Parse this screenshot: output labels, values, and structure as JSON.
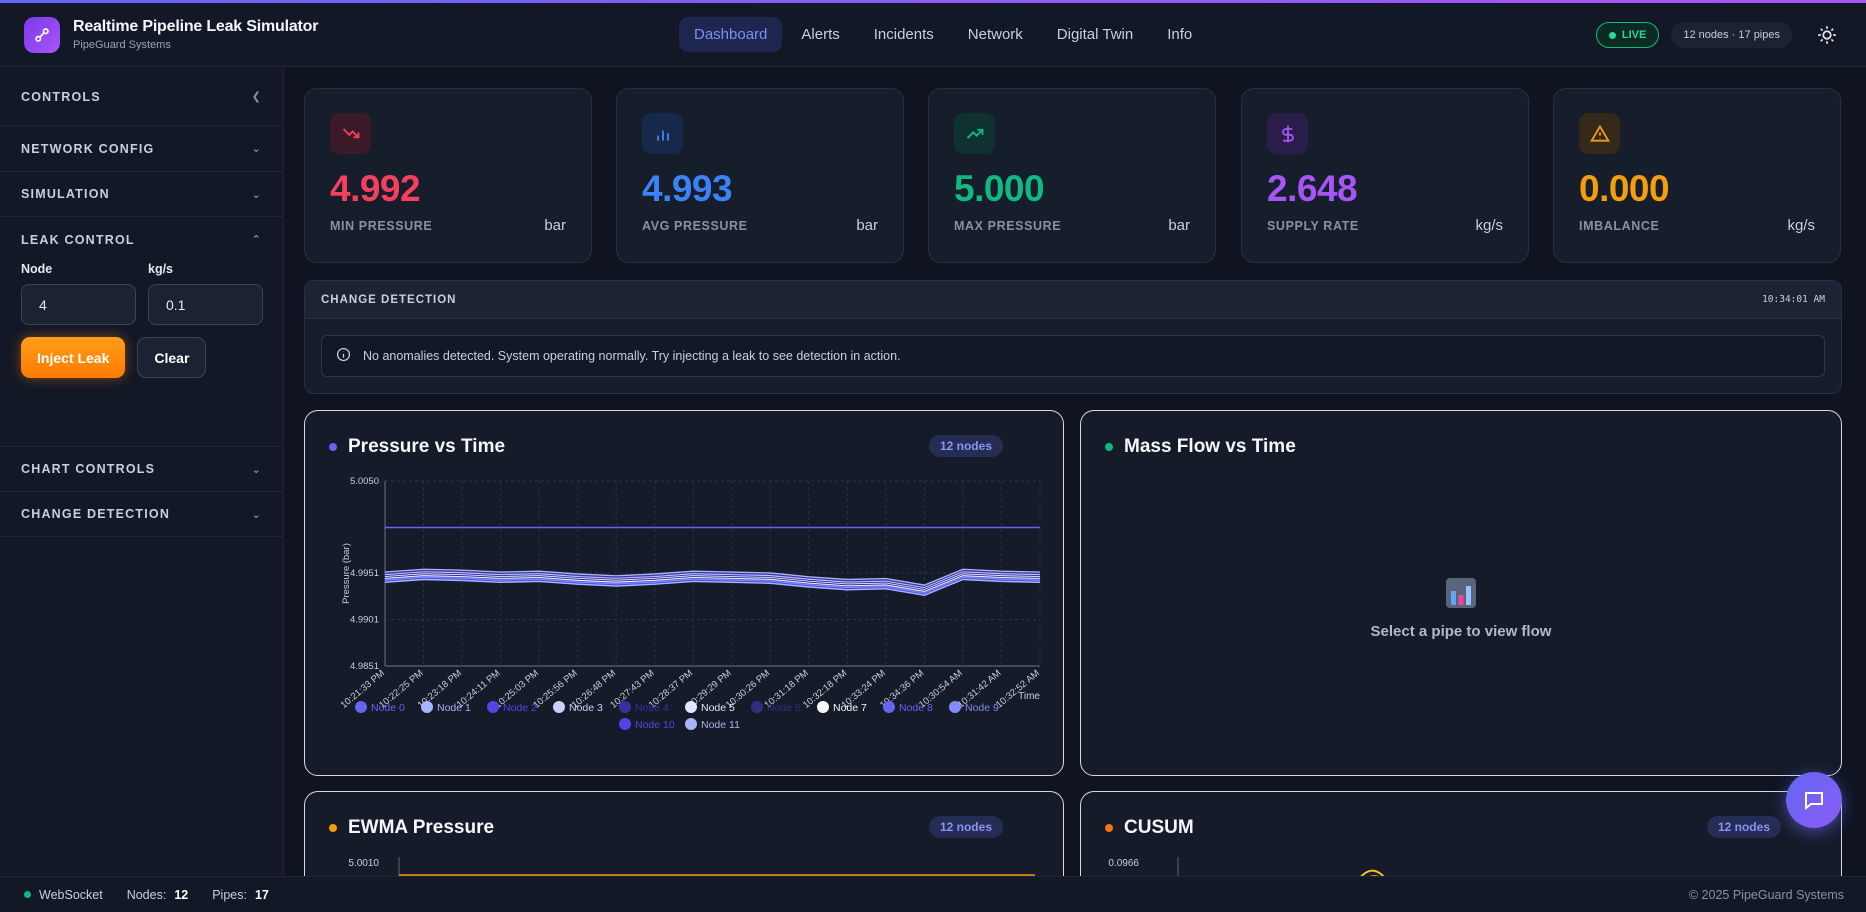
{
  "header": {
    "title": "Realtime Pipeline Leak Simulator",
    "subtitle": "PipeGuard Systems",
    "nav": [
      "Dashboard",
      "Alerts",
      "Incidents",
      "Network",
      "Digital Twin",
      "Info"
    ],
    "live_label": "LIVE",
    "network_pill": "12 nodes · 17 pipes"
  },
  "sidebar": {
    "controls_label": "CONTROLS",
    "network_config": "NETWORK CONFIG",
    "simulation": "SIMULATION",
    "leak_control": "LEAK CONTROL",
    "node_label": "Node",
    "node_value": "4",
    "rate_label": "kg/s",
    "rate_value": "0.1",
    "inject_label": "Inject Leak",
    "clear_label": "Clear",
    "chart_controls": "CHART CONTROLS",
    "change_detection": "CHANGE DETECTION"
  },
  "stats": [
    {
      "value": "4.992",
      "label": "MIN PRESSURE",
      "unit": "bar",
      "color": "#f43f5e",
      "icon": "trending-down-icon"
    },
    {
      "value": "4.993",
      "label": "AVG PRESSURE",
      "unit": "bar",
      "color": "#3b82f6",
      "icon": "bar-chart-icon"
    },
    {
      "value": "5.000",
      "label": "MAX PRESSURE",
      "unit": "bar",
      "color": "#10b981",
      "icon": "trending-up-icon"
    },
    {
      "value": "2.648",
      "label": "SUPPLY RATE",
      "unit": "kg/s",
      "color": "#a855f7",
      "icon": "dollar-icon"
    },
    {
      "value": "0.000",
      "label": "IMBALANCE",
      "unit": "kg/s",
      "color": "#f59e0b",
      "icon": "warning-icon"
    }
  ],
  "change_detection": {
    "title": "CHANGE DETECTION",
    "time": "10:34:01 AM",
    "message": "No anomalies detected. System operating normally. Try injecting a leak to see detection in action."
  },
  "panels": {
    "pressure": {
      "title": "Pressure vs Time",
      "badge": "12 nodes"
    },
    "massflow": {
      "title": "Mass Flow vs Time",
      "empty": "Select a pipe to view flow"
    },
    "ewma": {
      "title": "EWMA Pressure",
      "badge": "12 nodes",
      "top_tick": "5.0010"
    },
    "cusum": {
      "title": "CUSUM",
      "badge": "12 nodes",
      "top_tick": "0.0966"
    }
  },
  "chart_data": {
    "type": "line",
    "title": "Pressure vs Time",
    "ylabel": "Pressure (bar)",
    "xlabel": "Time",
    "ylim": [
      4.9851,
      5.005
    ],
    "y_ticks": [
      "5.0050",
      "4.9951",
      "4.9901",
      "4.9851"
    ],
    "x_ticks": [
      "10:21:33 PM",
      "10:22:25 PM",
      "10:23:18 PM",
      "10:24:11 PM",
      "10:25:03 PM",
      "10:25:56 PM",
      "10:26:48 PM",
      "10:27:43 PM",
      "10:28:37 PM",
      "10:29:29 PM",
      "10:30:26 PM",
      "10:31:18 PM",
      "10:32:18 PM",
      "10:33:24 PM",
      "10:34:36 PM",
      "10:30:54 AM",
      "10:31:42 AM",
      "10:32:52 AM"
    ],
    "series": [
      {
        "name": "Node 0",
        "color": "#6366f1",
        "values": [
          5.0,
          5.0,
          5.0,
          5.0,
          5.0,
          5.0,
          5.0,
          5.0,
          5.0,
          5.0,
          5.0,
          5.0,
          5.0,
          5.0,
          5.0,
          5.0,
          5.0,
          5.0
        ]
      },
      {
        "name": "Node 1",
        "color": "#a5b4fc",
        "values": [
          4.9952,
          4.9955,
          4.9954,
          4.9952,
          4.9953,
          4.995,
          4.9948,
          4.995,
          4.9953,
          4.9952,
          4.9951,
          4.9947,
          4.9944,
          4.9945,
          4.9938,
          4.9955,
          4.9953,
          4.9952
        ]
      },
      {
        "name": "Node 2",
        "color": "#4f46e5",
        "values": [
          4.995,
          4.9953,
          4.9952,
          4.995,
          4.9951,
          4.9948,
          4.9946,
          4.9948,
          4.9951,
          4.995,
          4.9949,
          4.9945,
          4.9942,
          4.9943,
          4.9936,
          4.9953,
          4.9951,
          4.995
        ]
      },
      {
        "name": "Node 3",
        "color": "#c7d2fe",
        "values": [
          4.9949,
          4.9952,
          4.9951,
          4.9949,
          4.995,
          4.9947,
          4.9945,
          4.9947,
          4.995,
          4.9949,
          4.9948,
          4.9944,
          4.9941,
          4.9942,
          4.9935,
          4.9952,
          4.995,
          4.9949
        ]
      },
      {
        "name": "Node 4",
        "color": "#3730a3",
        "values": [
          4.9948,
          4.9951,
          4.995,
          4.9948,
          4.9949,
          4.9946,
          4.9944,
          4.9946,
          4.9949,
          4.9948,
          4.9947,
          4.9943,
          4.994,
          4.9941,
          4.9934,
          4.9951,
          4.9949,
          4.9948
        ]
      },
      {
        "name": "Node 5",
        "color": "#e0e7ff",
        "values": [
          4.9947,
          4.995,
          4.9949,
          4.9947,
          4.9948,
          4.9945,
          4.9943,
          4.9945,
          4.9948,
          4.9947,
          4.9946,
          4.9942,
          4.9939,
          4.994,
          4.9933,
          4.995,
          4.9948,
          4.9947
        ]
      },
      {
        "name": "Node 6",
        "color": "#312e81",
        "values": [
          4.9946,
          4.9949,
          4.9948,
          4.9946,
          4.9947,
          4.9944,
          4.9942,
          4.9944,
          4.9947,
          4.9946,
          4.9945,
          4.9941,
          4.9938,
          4.9939,
          4.9932,
          4.9949,
          4.9947,
          4.9946
        ]
      },
      {
        "name": "Node 7",
        "color": "#f8fafc",
        "values": [
          4.9945,
          4.9948,
          4.9947,
          4.9945,
          4.9946,
          4.9943,
          4.9941,
          4.9943,
          4.9946,
          4.9945,
          4.9944,
          4.994,
          4.9937,
          4.9938,
          4.9931,
          4.9948,
          4.9946,
          4.9945
        ]
      },
      {
        "name": "Node 8",
        "color": "#6366f1",
        "values": [
          4.9944,
          4.9947,
          4.9946,
          4.9944,
          4.9945,
          4.9942,
          4.994,
          4.9942,
          4.9945,
          4.9944,
          4.9943,
          4.9939,
          4.9936,
          4.9937,
          4.993,
          4.9947,
          4.9945,
          4.9944
        ]
      },
      {
        "name": "Node 9",
        "color": "#818cf8",
        "values": [
          4.9943,
          4.9946,
          4.9945,
          4.9943,
          4.9944,
          4.9941,
          4.9939,
          4.9941,
          4.9944,
          4.9943,
          4.9942,
          4.9938,
          4.9935,
          4.9936,
          4.9929,
          4.9946,
          4.9944,
          4.9943
        ]
      },
      {
        "name": "Node 10",
        "color": "#4f46e5",
        "values": [
          4.9942,
          4.9945,
          4.9944,
          4.9942,
          4.9943,
          4.994,
          4.9938,
          4.994,
          4.9943,
          4.9942,
          4.9941,
          4.9937,
          4.9934,
          4.9935,
          4.9928,
          4.9945,
          4.9943,
          4.9942
        ]
      },
      {
        "name": "Node 11",
        "color": "#a5b4fc",
        "values": [
          4.9941,
          4.9944,
          4.9943,
          4.9941,
          4.9942,
          4.9939,
          4.9937,
          4.9939,
          4.9942,
          4.9941,
          4.994,
          4.9936,
          4.9933,
          4.9934,
          4.9927,
          4.9944,
          4.9942,
          4.9941
        ]
      }
    ]
  },
  "footer": {
    "ws_label": "WebSocket",
    "nodes_label": "Nodes:",
    "nodes_value": "12",
    "pipes_label": "Pipes:",
    "pipes_value": "17",
    "copyright": "© 2025 PipeGuard Systems"
  }
}
